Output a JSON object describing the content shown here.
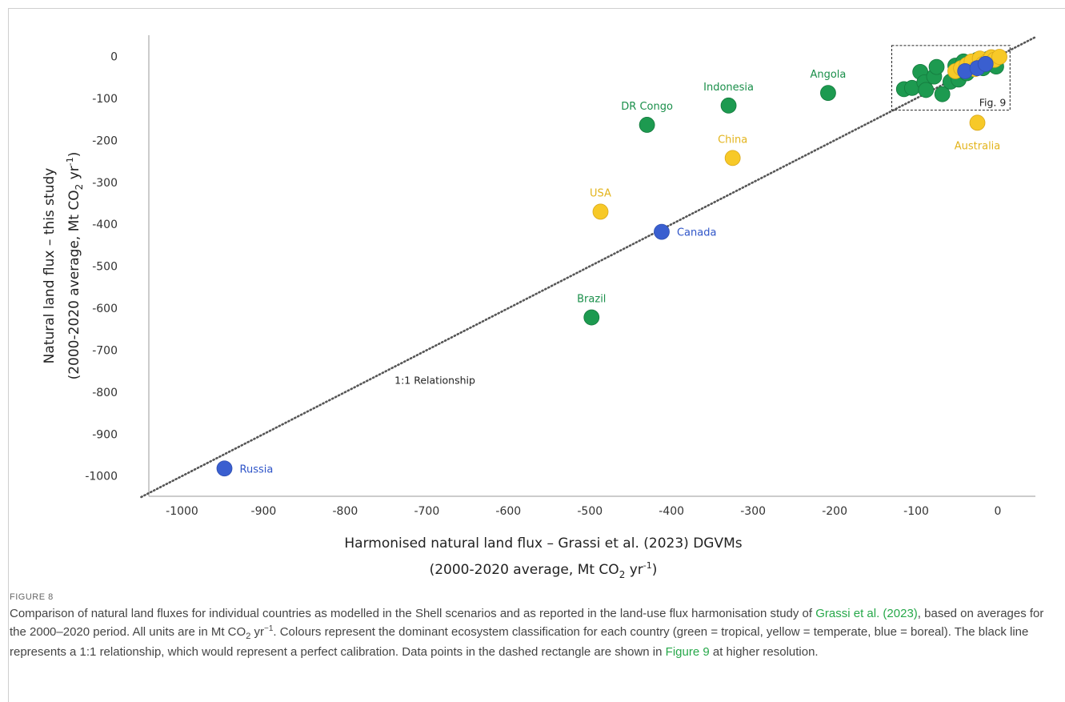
{
  "chart_data": {
    "type": "scatter",
    "xlabel_line1": "Harmonised natural land flux – Grassi et al. (2023) DGVMs",
    "xlabel_line2_prefix": "(2000-2020 average, Mt CO",
    "xlabel_line2_sub": "2",
    "xlabel_line2_mid": " yr",
    "xlabel_line2_sup": "-1",
    "xlabel_line2_end": ")",
    "ylabel_line1": "Natural land flux – this study",
    "ylabel_line2_prefix": "(2000-2020 average, Mt CO",
    "ylabel_line2_sub": "2",
    "ylabel_line2_mid": " yr",
    "ylabel_line2_sup": "-1",
    "ylabel_line2_end": ")",
    "xlim": [
      -1050,
      45
    ],
    "ylim": [
      -1052,
      52
    ],
    "x_ticks": [
      -1000,
      -900,
      -800,
      -700,
      -600,
      -500,
      -400,
      -300,
      -200,
      -100,
      0
    ],
    "y_ticks": [
      0,
      -100,
      -200,
      -300,
      -400,
      -500,
      -600,
      -700,
      -800,
      -900,
      -1000
    ],
    "one_to_one_label": "1:1 Relationship",
    "one_to_one_label_at": {
      "x": -690,
      "y": -780
    },
    "inset_label": "Fig. 9",
    "inset_range": {
      "x": [
        -130,
        15
      ],
      "y": [
        -128,
        26
      ]
    },
    "colors": {
      "tropical": "#1d9a50",
      "temperate": "#f7c928",
      "boreal": "#3a5fd0"
    },
    "points": [
      {
        "x": -948,
        "y": -982,
        "group": "boreal",
        "label": "Russia",
        "label_pos": "right"
      },
      {
        "x": -498,
        "y": -622,
        "group": "tropical",
        "label": "Brazil",
        "label_pos": "top"
      },
      {
        "x": -487,
        "y": -370,
        "group": "temperate",
        "label": "USA",
        "label_pos": "top"
      },
      {
        "x": -412,
        "y": -418,
        "group": "boreal",
        "label": "Canada",
        "label_pos": "right"
      },
      {
        "x": -430,
        "y": -163,
        "group": "tropical",
        "label": "DR Congo",
        "label_pos": "top"
      },
      {
        "x": -330,
        "y": -117,
        "group": "tropical",
        "label": "Indonesia",
        "label_pos": "top"
      },
      {
        "x": -325,
        "y": -242,
        "group": "temperate",
        "label": "China",
        "label_pos": "top"
      },
      {
        "x": -208,
        "y": -87,
        "group": "tropical",
        "label": "Angola",
        "label_pos": "top"
      },
      {
        "x": -25,
        "y": -158,
        "group": "temperate",
        "label": "Australia",
        "label_pos": "bottom"
      },
      {
        "x": -115,
        "y": -78,
        "group": "tropical"
      },
      {
        "x": -105,
        "y": -75,
        "group": "tropical"
      },
      {
        "x": -95,
        "y": -37,
        "group": "tropical"
      },
      {
        "x": -90,
        "y": -62,
        "group": "tropical"
      },
      {
        "x": -88,
        "y": -80,
        "group": "tropical"
      },
      {
        "x": -78,
        "y": -48,
        "group": "tropical"
      },
      {
        "x": -75,
        "y": -25,
        "group": "tropical"
      },
      {
        "x": -68,
        "y": -90,
        "group": "tropical"
      },
      {
        "x": -58,
        "y": -60,
        "group": "tropical"
      },
      {
        "x": -52,
        "y": -22,
        "group": "tropical"
      },
      {
        "x": -48,
        "y": -55,
        "group": "tropical"
      },
      {
        "x": -42,
        "y": -12,
        "group": "tropical"
      },
      {
        "x": -38,
        "y": -40,
        "group": "tropical"
      },
      {
        "x": -30,
        "y": -25,
        "group": "tropical"
      },
      {
        "x": -25,
        "y": -8,
        "group": "tropical"
      },
      {
        "x": -18,
        "y": -28,
        "group": "tropical"
      },
      {
        "x": -12,
        "y": -6,
        "group": "tropical"
      },
      {
        "x": -5,
        "y": -15,
        "group": "tropical"
      },
      {
        "x": -2,
        "y": -24,
        "group": "tropical"
      },
      {
        "x": -52,
        "y": -35,
        "group": "temperate"
      },
      {
        "x": -45,
        "y": -28,
        "group": "temperate"
      },
      {
        "x": -38,
        "y": -20,
        "group": "temperate"
      },
      {
        "x": -32,
        "y": -12,
        "group": "temperate"
      },
      {
        "x": -28,
        "y": -30,
        "group": "temperate"
      },
      {
        "x": -22,
        "y": -5,
        "group": "temperate"
      },
      {
        "x": -18,
        "y": -18,
        "group": "temperate"
      },
      {
        "x": -12,
        "y": -10,
        "group": "temperate"
      },
      {
        "x": -8,
        "y": -2,
        "group": "temperate"
      },
      {
        "x": -4,
        "y": -8,
        "group": "temperate"
      },
      {
        "x": 2,
        "y": -1,
        "group": "temperate"
      },
      {
        "x": -40,
        "y": -35,
        "group": "boreal"
      },
      {
        "x": -25,
        "y": -28,
        "group": "boreal"
      },
      {
        "x": -15,
        "y": -18,
        "group": "boreal"
      }
    ]
  },
  "caption": {
    "figure_label": "FIGURE 8",
    "text_part1": "Comparison of natural land fluxes for individual countries as modelled in the Shell scenarios and as reported in the land-use flux harmonisation study of ",
    "link_grassi": "Grassi et al. (2023)",
    "text_part2": ", based on averages for the 2000–2020 period. All units are in Mt CO",
    "unit_sub": "2",
    "unit_mid": " yr",
    "unit_sup": "−1",
    "text_part3": ". Colours represent the dominant ecosystem classification for each country (green = tropical, yellow = temperate, blue = boreal). The black line represents a 1:1 relationship, which would represent a perfect calibration. Data points in the dashed rectangle are shown in ",
    "link_figure9": "Figure 9",
    "text_part4": " at higher resolution."
  }
}
